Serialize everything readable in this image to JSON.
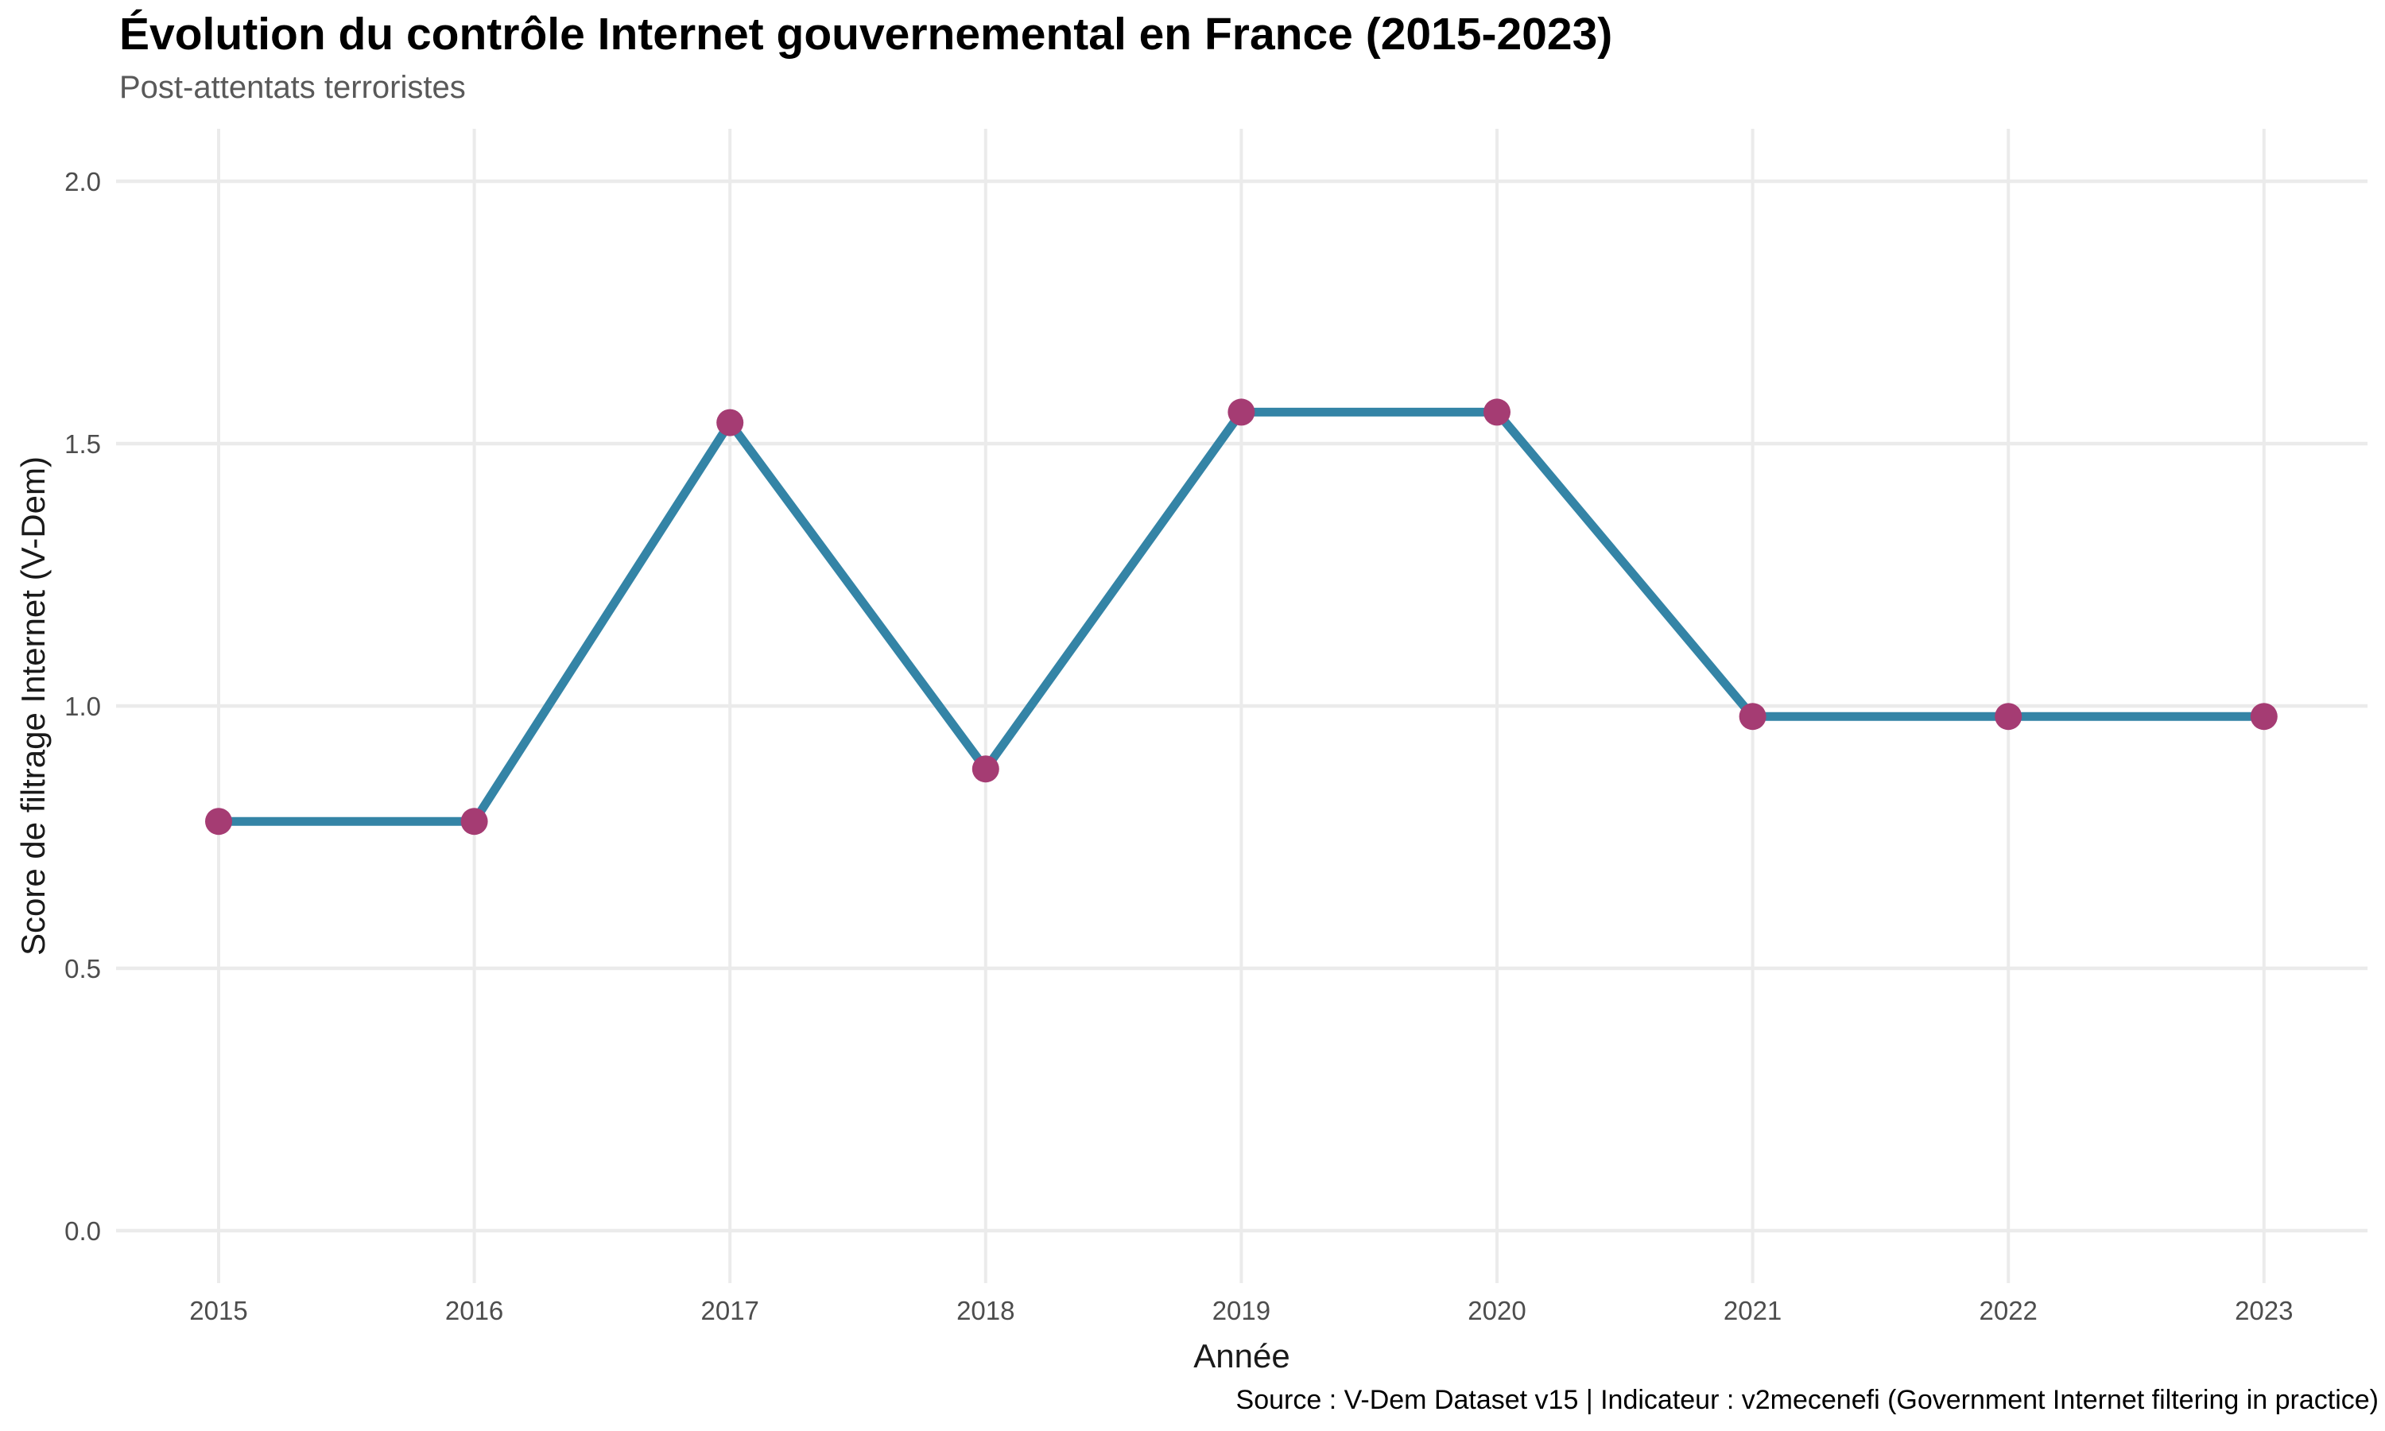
{
  "chart": {
    "title": "Évolution du contrôle Internet gouvernemental en France (2015-2023)",
    "subtitle": "Post-attentats terroristes",
    "caption": "Source : V-Dem Dataset v15 | Indicateur : v2mecenefi (Government Internet filtering in practice)",
    "xlabel": "Année",
    "ylabel": "Score de filtrage Internet (V-Dem)"
  },
  "chart_data": {
    "type": "line",
    "title": "Évolution du contrôle Internet gouvernemental en France (2015-2023)",
    "subtitle": "Post-attentats terroristes",
    "caption": "Source : V-Dem Dataset v15 | Indicateur : v2mecenefi (Government Internet filtering in practice)",
    "xlabel": "Année",
    "ylabel": "Score de filtrage Internet (V-Dem)",
    "categories": [
      2015,
      2016,
      2017,
      2018,
      2019,
      2020,
      2021,
      2022,
      2023
    ],
    "x_tick_labels": [
      "2015",
      "2016",
      "2017",
      "2018",
      "2019",
      "2020",
      "2021",
      "2022",
      "2023"
    ],
    "series": [
      {
        "name": "Score de filtrage Internet (V-Dem)",
        "values": [
          0.78,
          0.78,
          1.54,
          0.88,
          1.56,
          1.56,
          0.98,
          0.98,
          0.98
        ]
      }
    ],
    "ylim": [
      0.0,
      2.0
    ],
    "y_ticks": [
      0.0,
      0.5,
      1.0,
      1.5,
      2.0
    ],
    "y_tick_labels": [
      "0.0",
      "0.5",
      "1.0",
      "1.5",
      "2.0"
    ],
    "grid": true,
    "legend_position": "none",
    "colors": {
      "line": "#3484A6",
      "point": "#A53C73",
      "grid": "#EBEBEB",
      "tick_text": "#4D4D4D",
      "axis_title_text": "#1A1A1A",
      "subtitle_text": "#595959",
      "title_text": "#000000",
      "caption_text": "#000000",
      "background": "#FFFFFF"
    }
  }
}
